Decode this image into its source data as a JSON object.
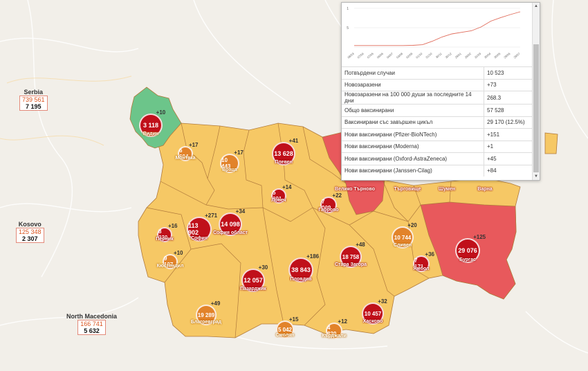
{
  "map": {
    "colors": {
      "green": "#6cc58a",
      "yellow": "#f6c865",
      "red": "#e8595c",
      "border": "#a57a3a",
      "marker_red": "#c0101a",
      "marker_orange": "#e2832a"
    }
  },
  "countries": [
    {
      "key": "serbia",
      "name": "Serbia",
      "total": "739 561",
      "today": "7 195"
    },
    {
      "key": "kosovo",
      "name": "Kosovo",
      "total": "125 348",
      "today": "2 307"
    },
    {
      "key": "north_macedonia",
      "name": "North Macedonia",
      "total": "166 741",
      "today": "5 632"
    }
  ],
  "regions": [
    {
      "key": "vidin",
      "name": "Видин",
      "cases": "3 118",
      "delta": "+10",
      "color": "green"
    },
    {
      "key": "montana",
      "name": "Монтака",
      "cases": "6 604",
      "delta": "+17",
      "color": "orange"
    },
    {
      "key": "vratsa",
      "name": "Враца",
      "cases": "10 443",
      "delta": "+17",
      "color": "orange"
    },
    {
      "key": "pleven",
      "name": "Плевен",
      "cases": "13 628",
      "delta": "+41",
      "color": "red"
    },
    {
      "key": "lovech",
      "name": "Ловеч",
      "cases": "5 991",
      "delta": "+14",
      "color": "red"
    },
    {
      "key": "gabrovo",
      "name": "Габрово",
      "cases": "7 009",
      "delta": "+22",
      "color": "red"
    },
    {
      "key": "veliko_tarnovo",
      "name": "Велико Търново",
      "cases": "",
      "delta": "",
      "color": "red"
    },
    {
      "key": "targovishte",
      "name": "Търговище",
      "cases": "",
      "delta": "",
      "color": "red"
    },
    {
      "key": "shumen",
      "name": "Шумен",
      "cases": "",
      "delta": "",
      "color": "red"
    },
    {
      "key": "varna",
      "name": "Варна",
      "cases": "",
      "delta": "",
      "color": "red"
    },
    {
      "key": "pernik",
      "name": "Перник",
      "cases": "8 330",
      "delta": "+16",
      "color": "red"
    },
    {
      "key": "sofia",
      "name": "София",
      "cases": "113 902",
      "delta": "+271",
      "color": "red"
    },
    {
      "key": "sofia_oblast",
      "name": "София област",
      "cases": "14 098",
      "delta": "+34",
      "color": "red"
    },
    {
      "key": "kyustendil",
      "name": "Кюстендил",
      "cases": "9 197",
      "delta": "+10",
      "color": "orange"
    },
    {
      "key": "pazardzhik",
      "name": "Пазарджик",
      "cases": "12 057",
      "delta": "+30",
      "color": "red"
    },
    {
      "key": "plovdiv",
      "name": "Пловдив",
      "cases": "38 843",
      "delta": "+186",
      "color": "red"
    },
    {
      "key": "stara_zagora",
      "name": "Стара Загора",
      "cases": "18 758",
      "delta": "+48",
      "color": "red"
    },
    {
      "key": "sliven",
      "name": "Сливен",
      "cases": "10 744",
      "delta": "+20",
      "color": "orange"
    },
    {
      "key": "yambol",
      "name": "Ямбол",
      "cases": "7 171",
      "delta": "+36",
      "color": "red"
    },
    {
      "key": "burgas",
      "name": "Бургас",
      "cases": "29 076",
      "delta": "+125",
      "color": "red"
    },
    {
      "key": "haskovo",
      "name": "Хасково",
      "cases": "10 457",
      "delta": "+32",
      "color": "red"
    },
    {
      "key": "blagoevgrad",
      "name": "Благоевград",
      "cases": "19 289",
      "delta": "+49",
      "color": "orange"
    },
    {
      "key": "smolyan",
      "name": "Смолян",
      "cases": "5 042",
      "delta": "+15",
      "color": "orange"
    },
    {
      "key": "kardzhali",
      "name": "Кърджали",
      "cases": "4 820",
      "delta": "+12",
      "color": "orange"
    }
  ],
  "popup": {
    "chart_data": {
      "type": "line",
      "yticks": [
        "1",
        "5"
      ],
      "xticks": [
        "08/03",
        "07/04",
        "07/05",
        "06/06",
        "04/07",
        "03/08",
        "02/09",
        "01/10",
        "31/10",
        "30/11",
        "30/12",
        "29/01",
        "28/02",
        "31/03",
        "30/04",
        "30/05",
        "29/06",
        "29/07"
      ],
      "line_color": "#e06b5a",
      "series": [
        {
          "values": [
            0.4,
            0.4,
            0.4,
            0.4,
            0.4,
            0.4,
            0.45,
            0.6,
            1.5,
            2.6,
            3.4,
            3.8,
            4.2,
            5.2,
            6.7,
            7.6,
            8.4,
            9.1
          ]
        }
      ]
    },
    "rows": [
      {
        "label": "Потвърдени случаи",
        "value": "10 523"
      },
      {
        "label": "Новозаразени",
        "value": "+73"
      },
      {
        "label": "Новозаразени на 100 000 души за последните 14 дни",
        "value": "268.3"
      },
      {
        "label": "Общо ваксинирани",
        "value": "57 528"
      },
      {
        "label": "Ваксинирани със завършен цикъл",
        "value": "29 170 (12.5%)"
      },
      {
        "label": "Нови ваксинирани (Pfizer-BioNTech)",
        "value": "+151"
      },
      {
        "label": "Нови ваксинирани (Moderna)",
        "value": "+1"
      },
      {
        "label": "Нови ваксинирани (Oxford-AstraZeneca)",
        "value": "+45"
      },
      {
        "label": "Нови ваксинирани (Janssen-Cilag)",
        "value": "+84"
      }
    ]
  }
}
